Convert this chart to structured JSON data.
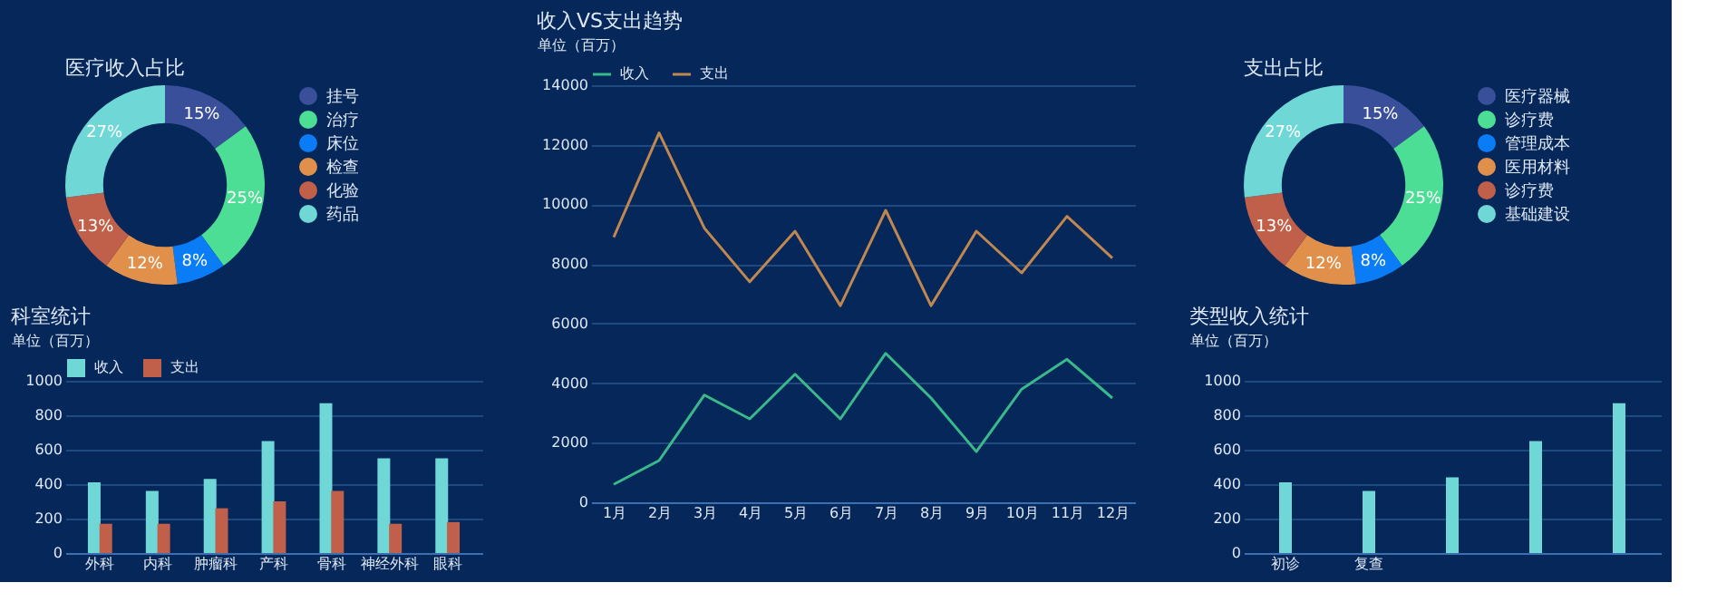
{
  "chart_data": [
    {
      "type": "donut",
      "title": "医疗收入占比",
      "categories": [
        "挂号",
        "治疗",
        "床位",
        "检查",
        "化验",
        "药品"
      ],
      "values": [
        15,
        25,
        8,
        12,
        13,
        27
      ],
      "value_labels": [
        "15%",
        "25%",
        "8%",
        "12%",
        "13%",
        "27%"
      ],
      "colors": [
        "#3a4f9a",
        "#4cde94",
        "#0a7cf5",
        "#e0904a",
        "#c0604a",
        "#6fd8d6"
      ],
      "legend": "right"
    },
    {
      "type": "line",
      "title": "收入VS支出趋势",
      "ylabel": "单位（百万）",
      "categories": [
        "1月",
        "2月",
        "3月",
        "4月",
        "5月",
        "6月",
        "7月",
        "8月",
        "9月",
        "10月",
        "11月",
        "12月"
      ],
      "series": [
        {
          "name": "收入",
          "color": "#3ab98a",
          "values": [
            600,
            1400,
            3600,
            2800,
            4300,
            2800,
            5000,
            3500,
            1700,
            3800,
            4800,
            3500
          ]
        },
        {
          "name": "支出",
          "color": "#c08850",
          "values": [
            8900,
            12400,
            9200,
            7400,
            9100,
            6600,
            9800,
            6600,
            9100,
            7700,
            9600,
            8200
          ]
        }
      ],
      "ylim": [
        0,
        14000
      ],
      "yticks": [
        0,
        2000,
        4000,
        6000,
        8000,
        10000,
        12000,
        14000
      ],
      "grid": "y",
      "legend": "top",
      "marker": "none",
      "line_style": "solid"
    },
    {
      "type": "donut",
      "title": "支出占比",
      "categories": [
        "医疗器械",
        "诊疗费",
        "管理成本",
        "医用材料",
        "诊疗费",
        "基础建设"
      ],
      "values": [
        15,
        25,
        8,
        12,
        13,
        27
      ],
      "value_labels": [
        "15%",
        "25%",
        "8%",
        "12%",
        "13%",
        "27%"
      ],
      "colors": [
        "#3a4f9a",
        "#4cde94",
        "#0a7cf5",
        "#e0904a",
        "#c0604a",
        "#6fd8d6"
      ],
      "legend": "right"
    },
    {
      "type": "bar",
      "title": "科室统计",
      "ylabel": "单位（百万）",
      "categories": [
        "外科",
        "内科",
        "肿瘤科",
        "产科",
        "骨科",
        "神经外科",
        "眼科"
      ],
      "series": [
        {
          "name": "收入",
          "color": "#6fd8d6",
          "values": [
            410,
            360,
            430,
            650,
            870,
            550,
            550
          ]
        },
        {
          "name": "支出",
          "color": "#c0604a",
          "values": [
            170,
            170,
            260,
            300,
            360,
            170,
            180
          ]
        }
      ],
      "ylim": [
        0,
        1000
      ],
      "yticks": [
        0,
        200,
        400,
        600,
        800,
        1000
      ],
      "grid": "y",
      "legend": "top"
    },
    {
      "type": "bar",
      "title": "类型收入统计",
      "ylabel": "单位（百万）",
      "categories": [
        "初诊",
        "复查",
        null,
        null,
        null
      ],
      "values": [
        410,
        360,
        440,
        650,
        870
      ],
      "color": "#6fd8d6",
      "ylim": [
        0,
        1000
      ],
      "yticks": [
        0,
        200,
        400,
        600,
        800,
        1000
      ],
      "grid": "y"
    }
  ]
}
